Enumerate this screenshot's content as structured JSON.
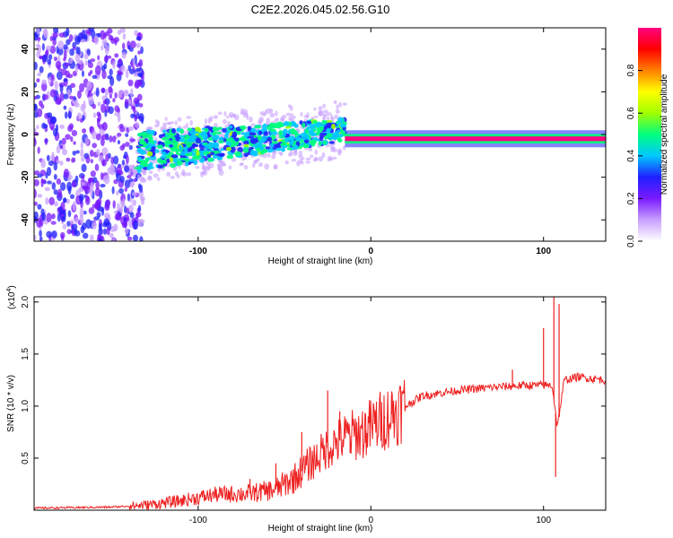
{
  "title": "C2E2.2026.045.02.56.G10",
  "chart_data": [
    {
      "type": "heatmap",
      "xlabel": "Height of straight line (km)",
      "ylabel": "Frequency (Hz)",
      "xlim": [
        -195,
        136
      ],
      "ylim": [
        -50,
        50
      ],
      "xticks": [
        -100,
        0,
        100
      ],
      "xtick_labels": [
        "-100",
        "0",
        "100"
      ],
      "yticks": [
        -40,
        -20,
        0,
        20,
        40
      ],
      "ytick_labels": [
        "-40",
        "-20",
        "0",
        "20",
        "40"
      ],
      "colorbar": {
        "label": "Normalized spectral amplitude",
        "range": [
          0,
          1
        ],
        "ticks": [
          0.0,
          0.2,
          0.4,
          0.6,
          0.8
        ],
        "tick_labels": [
          "0.0",
          "0.2",
          "0.4",
          "0.6",
          "0.8"
        ],
        "colors": [
          "#ffffff",
          "#c8a0ff",
          "#7a1aff",
          "#2020ff",
          "#00c8ff",
          "#00ff80",
          "#a0ff00",
          "#ffff00",
          "#ff8000",
          "#ff0000",
          "#ff0080"
        ]
      },
      "regions": [
        {
          "name": "noise",
          "x_range": [
            -195,
            -132
          ],
          "freq_range": [
            -50,
            50
          ],
          "amplitude": 0.2
        },
        {
          "name": "onset",
          "x_range": [
            -135,
            -15
          ],
          "freq_start": -8,
          "freq_end": 2,
          "amplitude": 0.45
        },
        {
          "name": "tracked",
          "x_range": [
            -15,
            136
          ],
          "freq": -2,
          "amplitude": 0.95
        }
      ]
    },
    {
      "type": "line",
      "xlabel": "Height of straight line (km)",
      "ylabel": "SNR (10 * v/v)",
      "scale_label": "(x10",
      "scale_exp": "4",
      "scale_close": ")",
      "xlim": [
        -195,
        136
      ],
      "ylim": [
        0,
        2.05
      ],
      "xticks": [
        -100,
        0,
        100
      ],
      "xtick_labels": [
        "-100",
        "0",
        "100"
      ],
      "yticks": [
        0.5,
        1.0,
        1.5,
        2.0
      ],
      "ytick_labels": [
        "0.5",
        "1.0",
        "1.5",
        "2.0"
      ],
      "color": "#ee2020",
      "envelope": {
        "x": [
          -195,
          -150,
          -130,
          -110,
          -90,
          -70,
          -55,
          -45,
          -35,
          -25,
          -15,
          -5,
          0,
          10,
          20,
          30,
          50,
          70,
          90,
          100,
          105,
          108,
          112,
          120,
          136
        ],
        "y": [
          0.02,
          0.03,
          0.05,
          0.09,
          0.15,
          0.16,
          0.2,
          0.3,
          0.45,
          0.6,
          0.7,
          0.75,
          0.8,
          0.9,
          1.0,
          1.1,
          1.15,
          1.18,
          1.2,
          1.2,
          1.2,
          0.8,
          1.25,
          1.28,
          1.25
        ]
      },
      "spikes": [
        {
          "x": -70,
          "y": 0.3
        },
        {
          "x": -55,
          "y": 0.45
        },
        {
          "x": -40,
          "y": 0.75
        },
        {
          "x": -25,
          "y": 1.15
        },
        {
          "x": -18,
          "y": 0.95
        },
        {
          "x": -12,
          "y": 0.55
        },
        {
          "x": -3,
          "y": 0.65
        },
        {
          "x": 8,
          "y": 0.9
        },
        {
          "x": 12,
          "y": 1.1
        },
        {
          "x": 82,
          "y": 1.35
        },
        {
          "x": 100,
          "y": 1.75
        },
        {
          "x": 106,
          "y": 2.05
        },
        {
          "x": 109,
          "y": 1.98
        },
        {
          "x": 107,
          "y": 0.32
        }
      ]
    }
  ]
}
